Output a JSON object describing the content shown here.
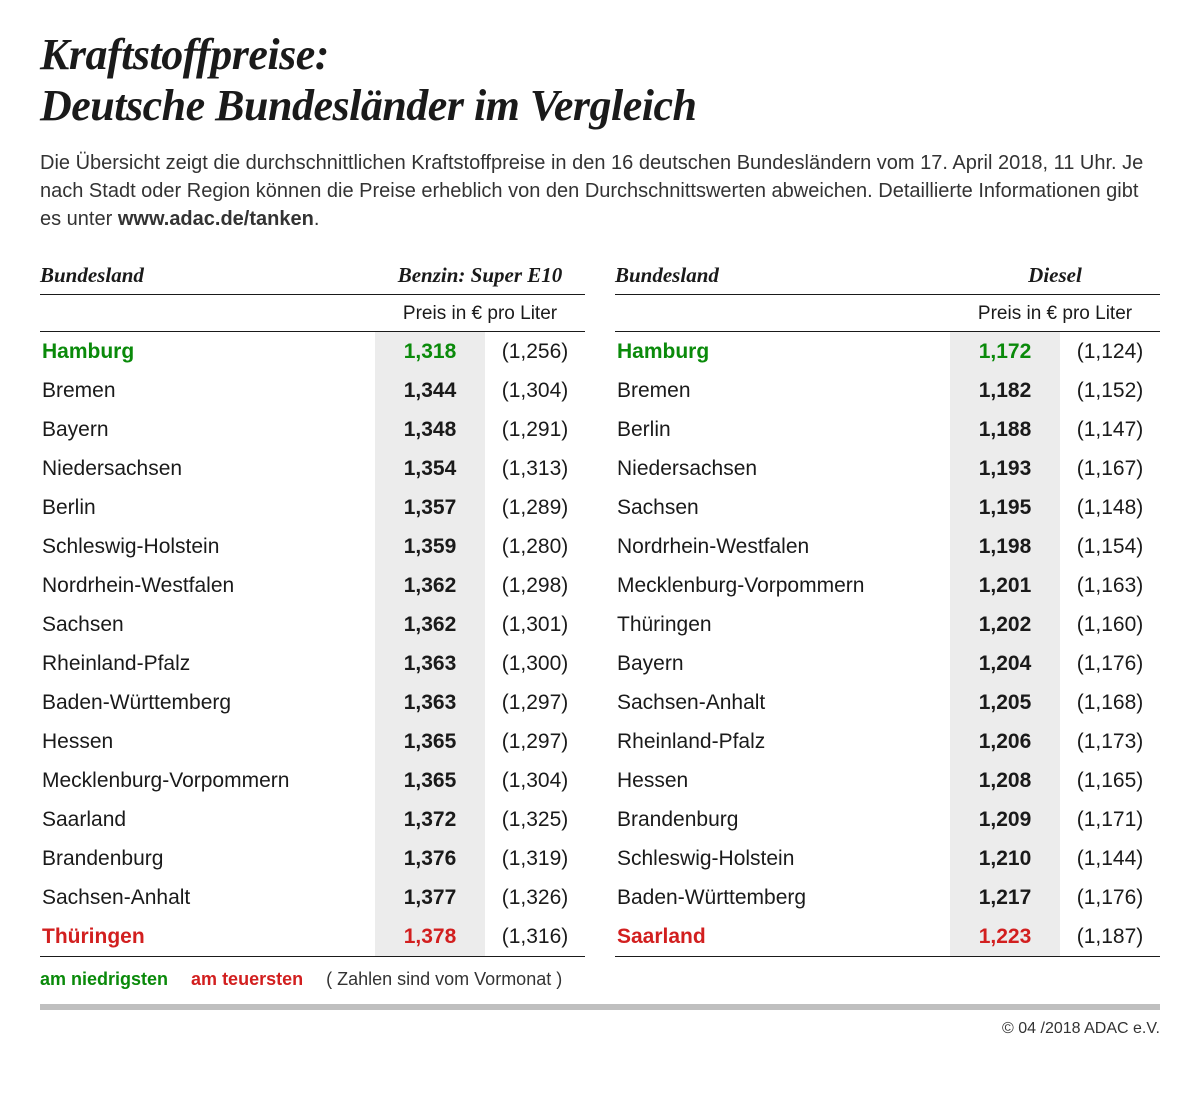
{
  "title_line1": "Kraftstoffpreise:",
  "title_line2": "Deutsche Bundesländer im Vergleich",
  "subtitle_text": "Die Übersicht zeigt die durchschnittlichen Kraftstoffpreise in den 16 deutschen Bundesländern vom 17. April 2018, 11 Uhr. Je nach Stadt oder Region können die Preise erheblich von den Durchschnittswerten abweichen. Detaillierte Informationen gibt es unter ",
  "subtitle_url": "www.adac.de/tanken",
  "subtitle_period": ".",
  "headers": {
    "state": "Bundesland",
    "price_unit": "Preis in € pro Liter"
  },
  "legend": {
    "lowest": "am niedrigsten",
    "highest": "am teuersten",
    "note": "( Zahlen sind vom Vormonat )"
  },
  "copyright": "© 04 /2018 ADAC e.V.",
  "colors": {
    "lowest": "#0a8a0a",
    "highest": "#d21f1f",
    "cur_bg": "#ececec",
    "bar": "#bfbfbf",
    "text": "#1a1a1a"
  },
  "fonts": {
    "title_size_pt": 33,
    "body_size_pt": 16,
    "table_size_pt": 16
  },
  "tables": [
    {
      "fuel_label": "Benzin:  Super E10",
      "rows": [
        {
          "state": "Hamburg",
          "cur": "1,318",
          "prev": "(1,256)",
          "flag": "lowest"
        },
        {
          "state": "Bremen",
          "cur": "1,344",
          "prev": "(1,304)"
        },
        {
          "state": "Bayern",
          "cur": "1,348",
          "prev": "(1,291)"
        },
        {
          "state": "Niedersachsen",
          "cur": "1,354",
          "prev": "(1,313)"
        },
        {
          "state": "Berlin",
          "cur": "1,357",
          "prev": "(1,289)"
        },
        {
          "state": "Schleswig-Holstein",
          "cur": "1,359",
          "prev": "(1,280)"
        },
        {
          "state": "Nordrhein-Westfalen",
          "cur": "1,362",
          "prev": "(1,298)"
        },
        {
          "state": "Sachsen",
          "cur": "1,362",
          "prev": "(1,301)"
        },
        {
          "state": "Rheinland-Pfalz",
          "cur": "1,363",
          "prev": "(1,300)"
        },
        {
          "state": "Baden-Württemberg",
          "cur": "1,363",
          "prev": "(1,297)"
        },
        {
          "state": "Hessen",
          "cur": "1,365",
          "prev": "(1,297)"
        },
        {
          "state": "Mecklenburg-Vorpommern",
          "cur": "1,365",
          "prev": "(1,304)"
        },
        {
          "state": "Saarland",
          "cur": "1,372",
          "prev": "(1,325)"
        },
        {
          "state": "Brandenburg",
          "cur": "1,376",
          "prev": "(1,319)"
        },
        {
          "state": "Sachsen-Anhalt",
          "cur": "1,377",
          "prev": "(1,326)"
        },
        {
          "state": "Thüringen",
          "cur": "1,378",
          "prev": "(1,316)",
          "flag": "highest"
        }
      ]
    },
    {
      "fuel_label": "Diesel",
      "rows": [
        {
          "state": "Hamburg",
          "cur": "1,172",
          "prev": "(1,124)",
          "flag": "lowest"
        },
        {
          "state": "Bremen",
          "cur": "1,182",
          "prev": "(1,152)"
        },
        {
          "state": "Berlin",
          "cur": "1,188",
          "prev": "(1,147)"
        },
        {
          "state": "Niedersachsen",
          "cur": "1,193",
          "prev": "(1,167)"
        },
        {
          "state": "Sachsen",
          "cur": "1,195",
          "prev": "(1,148)"
        },
        {
          "state": "Nordrhein-Westfalen",
          "cur": "1,198",
          "prev": "(1,154)"
        },
        {
          "state": "Mecklenburg-Vorpommern",
          "cur": "1,201",
          "prev": "(1,163)"
        },
        {
          "state": "Thüringen",
          "cur": "1,202",
          "prev": "(1,160)"
        },
        {
          "state": "Bayern",
          "cur": "1,204",
          "prev": "(1,176)"
        },
        {
          "state": "Sachsen-Anhalt",
          "cur": "1,205",
          "prev": "(1,168)"
        },
        {
          "state": "Rheinland-Pfalz",
          "cur": "1,206",
          "prev": "(1,173)"
        },
        {
          "state": "Hessen",
          "cur": "1,208",
          "prev": "(1,165)"
        },
        {
          "state": "Brandenburg",
          "cur": "1,209",
          "prev": "(1,171)"
        },
        {
          "state": "Schleswig-Holstein",
          "cur": "1,210",
          "prev": "(1,144)"
        },
        {
          "state": "Baden-Württemberg",
          "cur": "1,217",
          "prev": "(1,176)"
        },
        {
          "state": "Saarland",
          "cur": "1,223",
          "prev": "(1,187)",
          "flag": "highest"
        }
      ]
    }
  ]
}
